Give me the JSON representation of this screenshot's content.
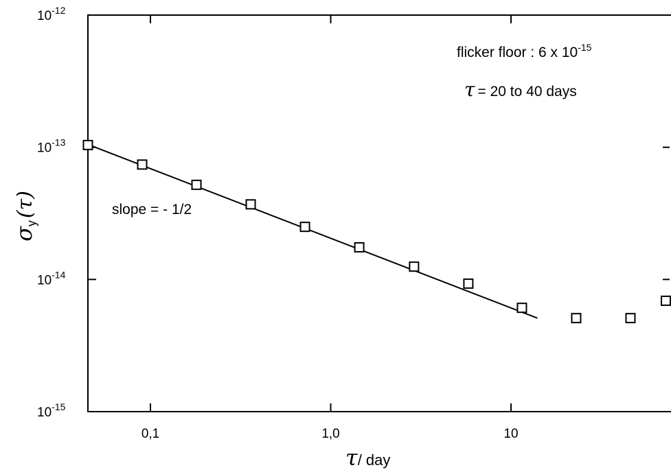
{
  "chart_data": {
    "type": "scatter",
    "title": "",
    "xlabel": {
      "symbol": "τ",
      "text": "/ day"
    },
    "ylabel": {
      "symbol": "σ",
      "subscript": "y",
      "arg": "(τ)"
    },
    "x_scale": "log",
    "y_scale": "log",
    "xlim": [
      0.045,
      85
    ],
    "ylim": [
      1e-15,
      1e-12
    ],
    "x_ticks": [
      {
        "value": 0.1,
        "label": "0,1"
      },
      {
        "value": 1.0,
        "label": "1,0"
      },
      {
        "value": 10,
        "label": "10"
      }
    ],
    "y_ticks": [
      {
        "value": 1e-12,
        "base": "10",
        "exp": "-12"
      },
      {
        "value": 1e-13,
        "base": "10",
        "exp": "-13"
      },
      {
        "value": 1e-14,
        "base": "10",
        "exp": "-14"
      },
      {
        "value": 1e-15,
        "base": "10",
        "exp": "-15"
      }
    ],
    "grid": false,
    "series": [
      {
        "marker": "open-square",
        "points": [
          {
            "x": 0.045,
            "y": 1.04e-13
          },
          {
            "x": 0.09,
            "y": 7.4e-14
          },
          {
            "x": 0.18,
            "y": 5.2e-14
          },
          {
            "x": 0.36,
            "y": 3.7e-14
          },
          {
            "x": 0.72,
            "y": 2.5e-14
          },
          {
            "x": 1.44,
            "y": 1.75e-14
          },
          {
            "x": 2.9,
            "y": 1.25e-14
          },
          {
            "x": 5.8,
            "y": 9.3e-15
          },
          {
            "x": 11.5,
            "y": 6.1e-15
          },
          {
            "x": 23,
            "y": 5.1e-15
          },
          {
            "x": 46,
            "y": 5.1e-15
          },
          {
            "x": 92,
            "y": 6.9e-15
          }
        ]
      }
    ],
    "fit_line": {
      "x": [
        0.045,
        14
      ],
      "y": [
        1.05e-13,
        5.1e-15
      ]
    },
    "annotations": {
      "slope": "slope = - 1/2",
      "floor_text": "flicker floor : 6 x 10",
      "floor_exp": "-15",
      "tau_symbol": "τ",
      "tau_range": "= 20 to 40 days"
    }
  }
}
